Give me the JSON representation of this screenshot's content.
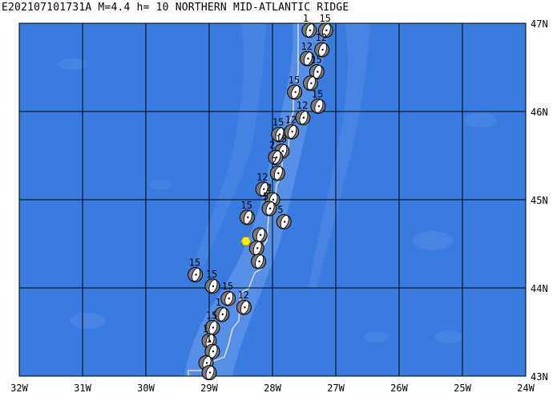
{
  "title": "E202107101731A M=4.4 h= 10 NORTHERN MID-ATLANTIC RIDGE",
  "map": {
    "lon_range": [
      -32,
      -24
    ],
    "lat_range": [
      43,
      47
    ],
    "lon_ticks": [
      {
        "value": -32,
        "label": "32W"
      },
      {
        "value": -31,
        "label": "31W"
      },
      {
        "value": -30,
        "label": "30W"
      },
      {
        "value": -29,
        "label": "29W"
      },
      {
        "value": -28,
        "label": "28W"
      },
      {
        "value": -27,
        "label": "27W"
      },
      {
        "value": -26,
        "label": "26W"
      },
      {
        "value": -25,
        "label": "25W"
      },
      {
        "value": -24,
        "label": "24W"
      }
    ],
    "lat_ticks": [
      {
        "value": 47,
        "label": "47N"
      },
      {
        "value": 46,
        "label": "46N"
      },
      {
        "value": 45,
        "label": "45N"
      },
      {
        "value": 44,
        "label": "44N"
      },
      {
        "value": 43,
        "label": "43N"
      }
    ],
    "colors": {
      "ocean_deep": "#3a7be0",
      "ocean_shallow": "#5b94e6",
      "grid": "#000000",
      "plate_boundary": "#d8d8d8",
      "event_marker": "#ffee00",
      "beachball_fill": "#ffffff",
      "beachball_shade": "#7a7a7a"
    },
    "main_event": {
      "lon": -28.42,
      "lat": 44.53
    },
    "events": [
      {
        "lon": -27.42,
        "lat": 46.92,
        "label": "1"
      },
      {
        "lon": -27.16,
        "lat": 46.92,
        "label": "15"
      },
      {
        "lon": -27.22,
        "lat": 46.7,
        "label": "12"
      },
      {
        "lon": -27.45,
        "lat": 46.6,
        "label": "12"
      },
      {
        "lon": -27.3,
        "lat": 46.45,
        "label": "15"
      },
      {
        "lon": -27.65,
        "lat": 46.22,
        "label": "15"
      },
      {
        "lon": -27.4,
        "lat": 46.32,
        "label": ""
      },
      {
        "lon": -27.28,
        "lat": 46.06,
        "label": "15"
      },
      {
        "lon": -27.52,
        "lat": 45.93,
        "label": "12"
      },
      {
        "lon": -27.9,
        "lat": 45.74,
        "label": "15"
      },
      {
        "lon": -27.7,
        "lat": 45.77,
        "label": "12"
      },
      {
        "lon": -27.85,
        "lat": 45.55,
        "label": "15"
      },
      {
        "lon": -27.95,
        "lat": 45.48,
        "label": "2"
      },
      {
        "lon": -27.92,
        "lat": 45.3,
        "label": "2"
      },
      {
        "lon": -28.15,
        "lat": 45.12,
        "label": "12"
      },
      {
        "lon": -28.0,
        "lat": 45.0,
        "label": "2"
      },
      {
        "lon": -28.4,
        "lat": 44.8,
        "label": "15"
      },
      {
        "lon": -28.05,
        "lat": 44.9,
        "label": "5"
      },
      {
        "lon": -27.82,
        "lat": 44.75,
        "label": "5"
      },
      {
        "lon": -28.2,
        "lat": 44.6,
        "label": ""
      },
      {
        "lon": -28.25,
        "lat": 44.45,
        "label": ""
      },
      {
        "lon": -28.22,
        "lat": 44.3,
        "label": ""
      },
      {
        "lon": -29.22,
        "lat": 44.15,
        "label": "15"
      },
      {
        "lon": -28.95,
        "lat": 44.02,
        "label": "15"
      },
      {
        "lon": -28.7,
        "lat": 43.88,
        "label": "15"
      },
      {
        "lon": -28.45,
        "lat": 43.78,
        "label": "12"
      },
      {
        "lon": -28.8,
        "lat": 43.7,
        "label": "1"
      },
      {
        "lon": -28.95,
        "lat": 43.55,
        "label": "15"
      },
      {
        "lon": -29.0,
        "lat": 43.4,
        "label": "1"
      },
      {
        "lon": -28.95,
        "lat": 43.28,
        "label": "1"
      },
      {
        "lon": -29.05,
        "lat": 43.15,
        "label": ""
      },
      {
        "lon": -29.0,
        "lat": 43.04,
        "label": ""
      }
    ]
  }
}
